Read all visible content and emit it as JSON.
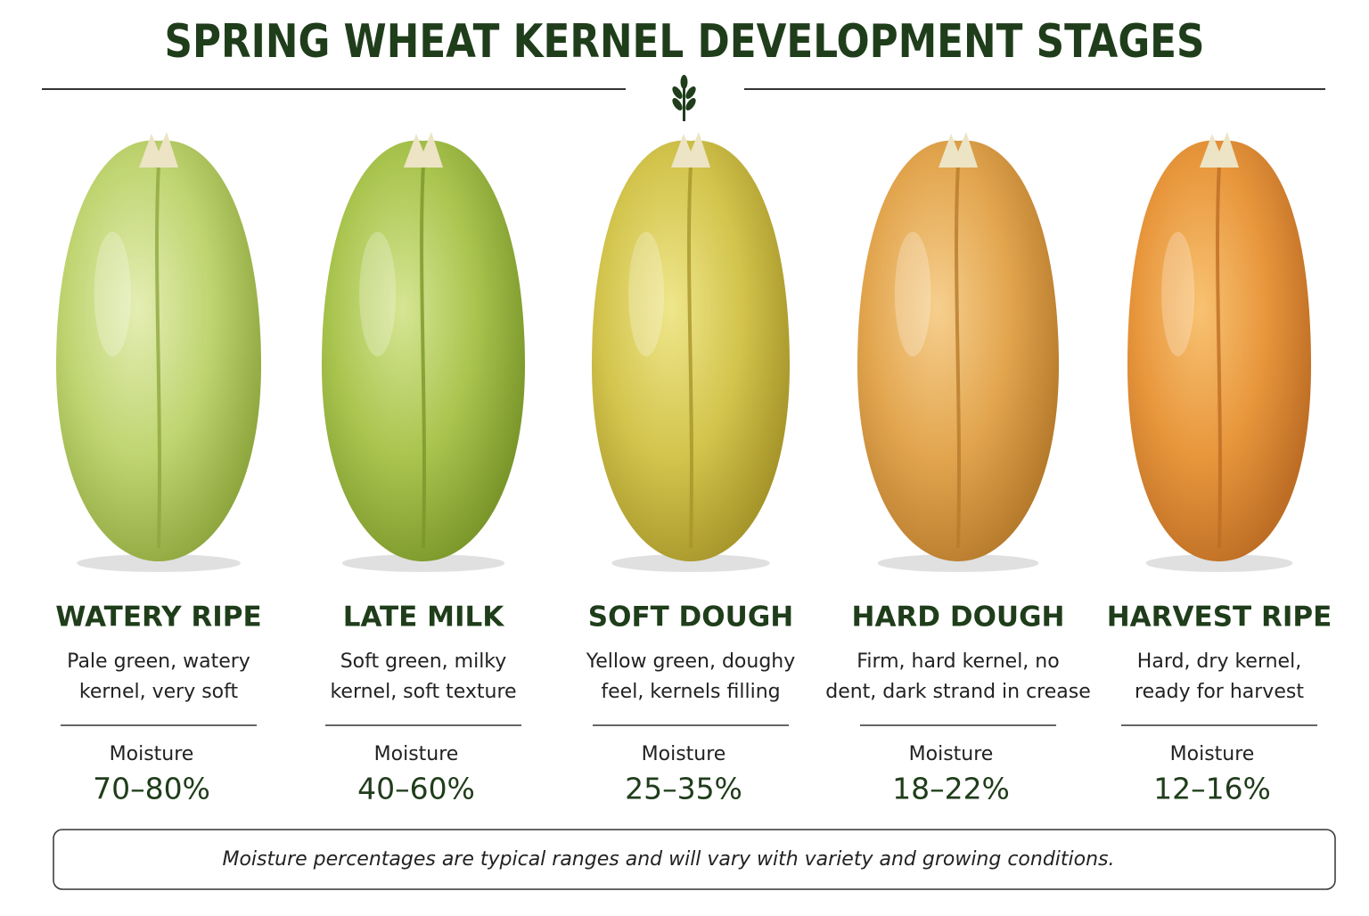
{
  "header": {
    "title": "SPRING WHEAT KERNEL DEVELOPMENT STAGES"
  },
  "stages": [
    {
      "name": "WATERY RIPE",
      "description": [
        "Pale green, watery",
        "kernel, very soft"
      ],
      "moisture_label": "Moisture",
      "moisture": "70–80%"
    },
    {
      "name": "LATE MILK",
      "description": [
        "Soft green, milky",
        "kernel, soft texture"
      ],
      "moisture_label": "Moisture",
      "moisture": "40–60%"
    },
    {
      "name": "SOFT DOUGH",
      "description": [
        "Yellow green, doughy",
        "feel, kernels filling"
      ],
      "moisture_label": "Moisture",
      "moisture": "25–35%"
    },
    {
      "name": "HARD DOUGH",
      "description": [
        "Firm, hard kernel, no",
        "dent, dark strand in crease"
      ],
      "moisture_label": "Moisture",
      "moisture": "18–22%"
    },
    {
      "name": "HARVEST RIPE",
      "description": [
        "Hard, dry kernel,",
        "ready for harvest"
      ],
      "moisture_label": "Moisture",
      "moisture": "12–16%"
    }
  ],
  "footnote": "Moisture percentages are typical ranges and will vary with variety and growing conditions."
}
